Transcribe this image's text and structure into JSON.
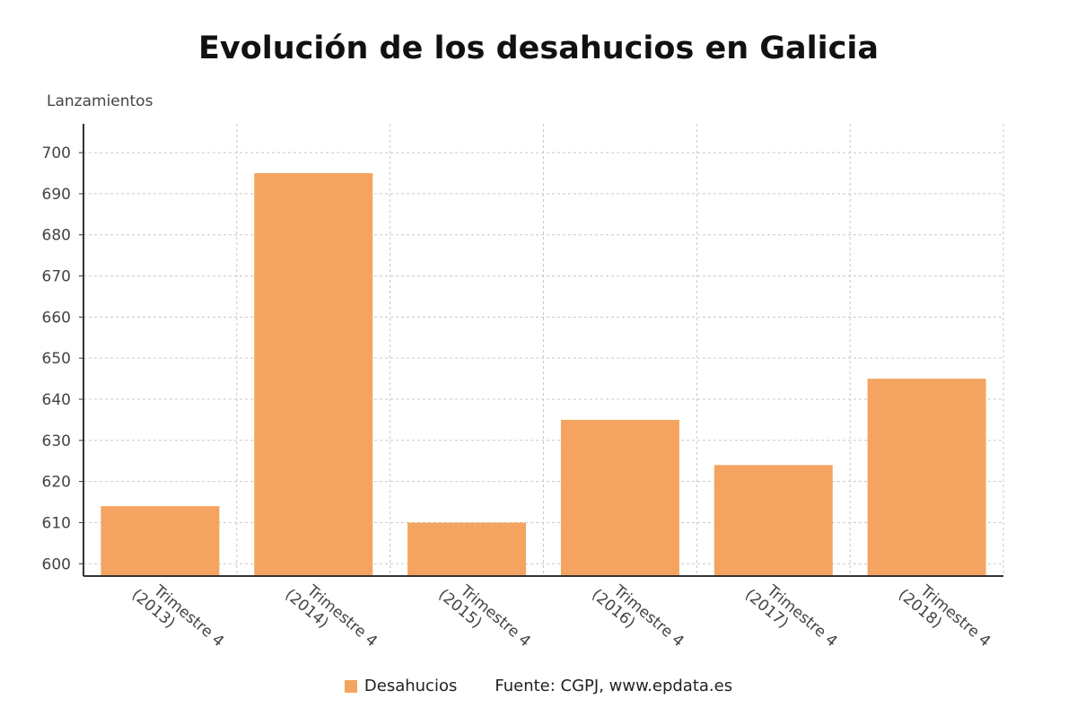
{
  "colors": {
    "bar": "#F4A460",
    "grid": "#c8c8c8",
    "axis": "#333333"
  },
  "legend": {
    "placement": "bottom-center",
    "series_label": "Desahucios",
    "source_text": "Fuente: CGPJ, www.epdata.es"
  },
  "chart_data": {
    "type": "bar",
    "title": "Evolución de los desahucios en Galicia",
    "ylabel": "Lanzamientos",
    "xlabel": "",
    "categories": [
      "Trimestre 4 (2013)",
      "Trimestre 4 (2014)",
      "Trimestre 4 (2015)",
      "Trimestre 4 (2016)",
      "Trimestre 4 (2017)",
      "Trimestre 4 (2018)"
    ],
    "category_lines": [
      [
        "Trimestre 4",
        "(2013)"
      ],
      [
        "Trimestre 4",
        "(2014)"
      ],
      [
        "Trimestre 4",
        "(2015)"
      ],
      [
        "Trimestre 4",
        "(2016)"
      ],
      [
        "Trimestre 4",
        "(2017)"
      ],
      [
        "Trimestre 4",
        "(2018)"
      ]
    ],
    "series": [
      {
        "name": "Desahucios",
        "values": [
          614,
          695,
          610,
          635,
          624,
          645
        ]
      }
    ],
    "ylim": [
      597,
      707
    ],
    "yticks": [
      600,
      610,
      620,
      630,
      640,
      650,
      660,
      670,
      680,
      690,
      700
    ],
    "grid": true
  }
}
